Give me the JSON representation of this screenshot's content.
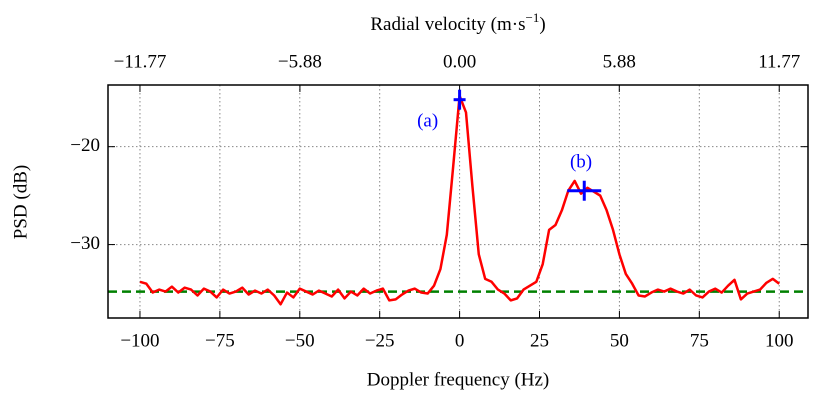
{
  "chart_data": {
    "type": "line",
    "xlabel": "Doppler frequency (Hz)",
    "ylabel": "PSD (dB)",
    "x2label": [
      "Radial velocity (m·s",
      "−1",
      ")"
    ],
    "xlim": [
      -110,
      109
    ],
    "ylim": [
      -37.5,
      -13.7
    ],
    "x2lim": [
      -12.947,
      12.829
    ],
    "xticks": [
      {
        "value": -100,
        "label": "−100"
      },
      {
        "value": -75,
        "label": "−75"
      },
      {
        "value": -50,
        "label": "−50"
      },
      {
        "value": -25,
        "label": "−25"
      },
      0,
      25,
      50,
      75,
      100
    ],
    "yticks": [
      {
        "value": -20,
        "label": "−20"
      },
      {
        "value": -30,
        "label": "−30"
      }
    ],
    "x2ticks": [
      {
        "value": -11.77,
        "label": "−11.77"
      },
      {
        "value": -5.88,
        "label": "−5.88"
      },
      {
        "value": 0,
        "label": "0.00"
      },
      5.88,
      11.77
    ],
    "grid": true,
    "series": [
      {
        "name": "PSD",
        "color": "#ff0000",
        "x": [
          -100,
          -98,
          -96,
          -94,
          -92,
          -90,
          -88,
          -86,
          -84,
          -82,
          -80,
          -78,
          -76,
          -74,
          -72,
          -70,
          -68,
          -66,
          -64,
          -62,
          -60,
          -58,
          -56,
          -54,
          -52,
          -50,
          -48,
          -46,
          -44,
          -42,
          -40,
          -38,
          -36,
          -34,
          -32,
          -30,
          -28,
          -26,
          -24,
          -22,
          -20,
          -18,
          -16,
          -14,
          -12,
          -10,
          -8,
          -6,
          -4,
          -2,
          0,
          2,
          4,
          6,
          8,
          10,
          12,
          14,
          16,
          18,
          20,
          22,
          24,
          26,
          28,
          30,
          32,
          34,
          36,
          38,
          40,
          42,
          44,
          46,
          48,
          50,
          52,
          54,
          56,
          58,
          60,
          62,
          64,
          66,
          68,
          70,
          72,
          74,
          76,
          78,
          80,
          82,
          84,
          86,
          88,
          90,
          92,
          94,
          96,
          98,
          100
        ],
        "values": [
          -33.8,
          -34.0,
          -34.9,
          -34.6,
          -34.8,
          -34.3,
          -34.9,
          -34.4,
          -34.6,
          -35.2,
          -34.5,
          -34.8,
          -35.4,
          -34.6,
          -35.0,
          -34.8,
          -34.4,
          -35.1,
          -34.7,
          -35.0,
          -34.6,
          -35.2,
          -36.1,
          -34.9,
          -35.4,
          -34.5,
          -34.8,
          -35.1,
          -34.7,
          -35.0,
          -35.3,
          -34.6,
          -35.5,
          -34.8,
          -35.2,
          -34.5,
          -35.0,
          -34.7,
          -34.5,
          -35.7,
          -35.6,
          -35.1,
          -34.7,
          -34.5,
          -34.9,
          -35.0,
          -34.2,
          -32.5,
          -29.0,
          -22.0,
          -14.8,
          -16.5,
          -24.0,
          -31.0,
          -33.5,
          -33.8,
          -34.6,
          -35.0,
          -35.7,
          -35.5,
          -34.6,
          -34.2,
          -33.8,
          -32.0,
          -28.5,
          -28.0,
          -26.5,
          -24.5,
          -23.5,
          -24.8,
          -24.2,
          -24.6,
          -25.0,
          -26.5,
          -28.5,
          -31.0,
          -33.0,
          -34.0,
          -35.2,
          -35.3,
          -34.9,
          -34.6,
          -34.8,
          -34.5,
          -34.8,
          -35.0,
          -34.6,
          -35.2,
          -35.4,
          -34.8,
          -34.5,
          -34.9,
          -34.2,
          -33.6,
          -35.6,
          -35.0,
          -34.8,
          -34.6,
          -33.9,
          -33.5,
          -34.0
        ]
      }
    ],
    "threshold": {
      "value": -34.8,
      "color": "#008000"
    },
    "markers": {
      "color": "#0000ff",
      "x": [
        0,
        39
      ],
      "values": [
        -15.2,
        -24.5
      ],
      "labels": [
        "(a)",
        "(b)"
      ],
      "label_x": [
        -10,
        38
      ],
      "label_y": [
        -17.5,
        -21.7
      ]
    }
  }
}
